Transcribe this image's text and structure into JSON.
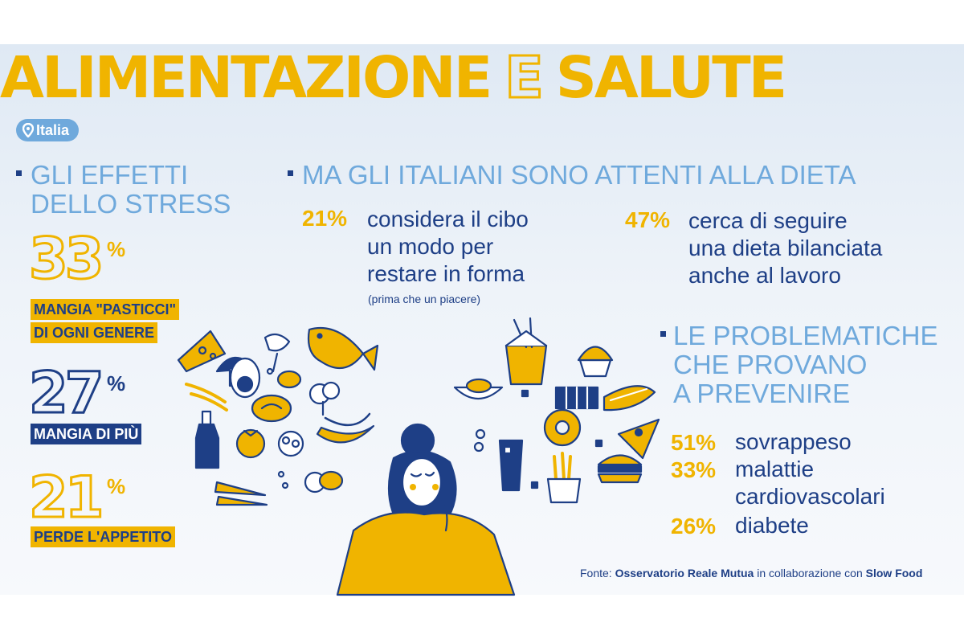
{
  "header": {
    "title_part1": "ALIMENTAZIONE",
    "title_part2": "E",
    "title_part3": "SALUTE",
    "location": "Italia"
  },
  "stress": {
    "heading_line1": "GLI EFFETTI",
    "heading_line2": "DELLO STRESS",
    "items": [
      {
        "value": "33",
        "unit": "%",
        "label_line1": "MANGIA \"PASTICCI\"",
        "label_line2": "DI OGNI GENERE"
      },
      {
        "value": "27",
        "unit": "%",
        "label_line1": "MANGIA DI PIÙ"
      },
      {
        "value": "21",
        "unit": "%",
        "label_line1": "PERDE L'APPETITO"
      }
    ]
  },
  "diet": {
    "heading": "MA GLI ITALIANI SONO ATTENTI ALLA DIETA",
    "items": [
      {
        "pct": "21%",
        "line1": "considera il cibo",
        "line2": "un modo per",
        "line3": "restare in forma",
        "note": "(prima che un piacere)"
      },
      {
        "pct": "47%",
        "line1": "cerca di seguire",
        "line2": "una dieta bilanciata",
        "line3": "anche al lavoro"
      }
    ]
  },
  "prevention": {
    "heading_line1": "LE PROBLEMATICHE",
    "heading_line2": "CHE PROVANO",
    "heading_line3": "A PREVENIRE",
    "items": [
      {
        "pct": "51%",
        "line1": "sovrappeso"
      },
      {
        "pct": "33%",
        "line1": "malattie",
        "line2": "cardiovascolari"
      },
      {
        "pct": "26%",
        "line1": "diabete"
      }
    ]
  },
  "source": {
    "prefix": "Fonte: ",
    "org1": "Osservatorio Reale Mutua",
    "middle": " in collaborazione con ",
    "org2": "Slow Food"
  },
  "colors": {
    "yellow": "#f0b400",
    "navy": "#1e3f86",
    "light_blue": "#6fa9dc"
  },
  "icons": [
    "location-pin-icon",
    "bullet-square-icon"
  ]
}
